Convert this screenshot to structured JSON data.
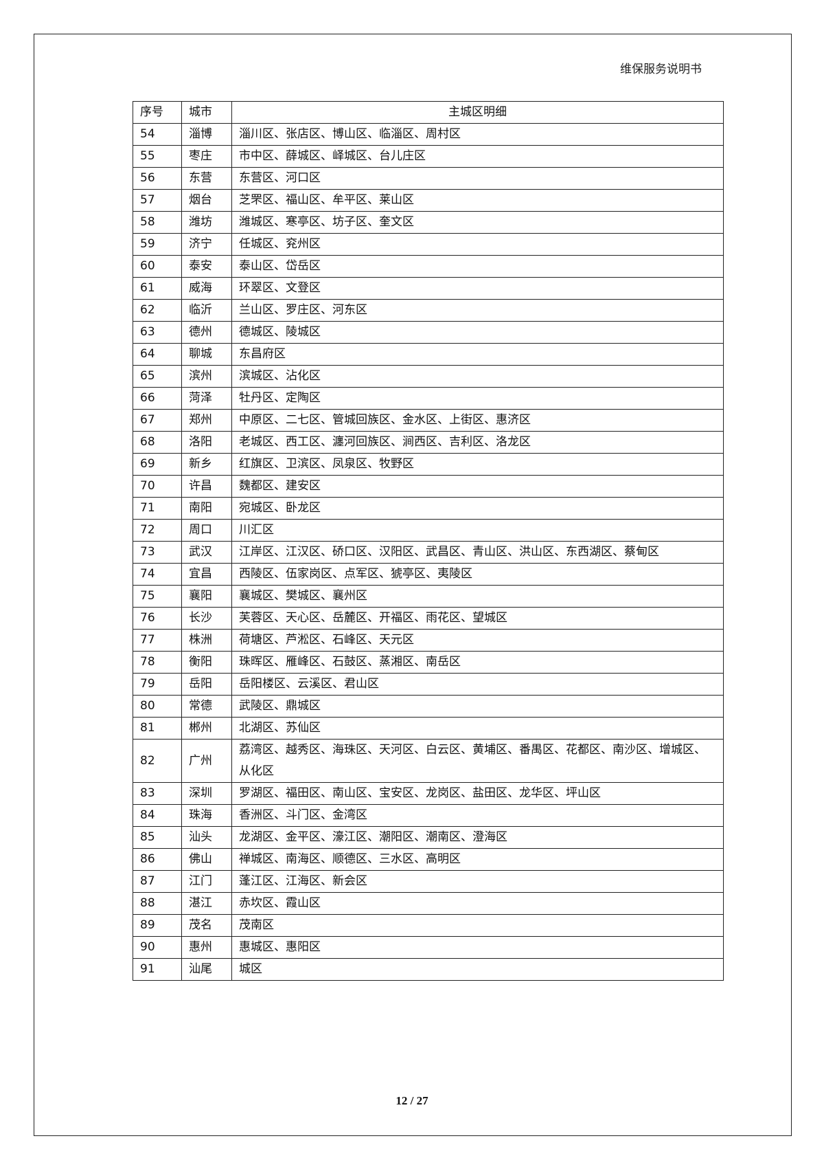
{
  "header": {
    "title": "维保服务说明书"
  },
  "table": {
    "columns": [
      "序号",
      "城市",
      "主城区明细"
    ],
    "rows": [
      [
        "54",
        "淄博",
        "淄川区、张店区、博山区、临淄区、周村区"
      ],
      [
        "55",
        "枣庄",
        "市中区、薛城区、峄城区、台儿庄区"
      ],
      [
        "56",
        "东营",
        "东营区、河口区"
      ],
      [
        "57",
        "烟台",
        "芝罘区、福山区、牟平区、莱山区"
      ],
      [
        "58",
        "潍坊",
        "潍城区、寒亭区、坊子区、奎文区"
      ],
      [
        "59",
        "济宁",
        "任城区、兖州区"
      ],
      [
        "60",
        "泰安",
        "泰山区、岱岳区"
      ],
      [
        "61",
        "威海",
        "环翠区、文登区"
      ],
      [
        "62",
        "临沂",
        "兰山区、罗庄区、河东区"
      ],
      [
        "63",
        "德州",
        "德城区、陵城区"
      ],
      [
        "64",
        "聊城",
        "东昌府区"
      ],
      [
        "65",
        "滨州",
        "滨城区、沾化区"
      ],
      [
        "66",
        "菏泽",
        "牡丹区、定陶区"
      ],
      [
        "67",
        "郑州",
        "中原区、二七区、管城回族区、金水区、上街区、惠济区"
      ],
      [
        "68",
        "洛阳",
        "老城区、西工区、瀍河回族区、涧西区、吉利区、洛龙区"
      ],
      [
        "69",
        "新乡",
        "红旗区、卫滨区、凤泉区、牧野区"
      ],
      [
        "70",
        "许昌",
        "魏都区、建安区"
      ],
      [
        "71",
        "南阳",
        "宛城区、卧龙区"
      ],
      [
        "72",
        "周口",
        "川汇区"
      ],
      [
        "73",
        "武汉",
        "江岸区、江汉区、硚口区、汉阳区、武昌区、青山区、洪山区、东西湖区、蔡甸区"
      ],
      [
        "74",
        "宜昌",
        "西陵区、伍家岗区、点军区、猇亭区、夷陵区"
      ],
      [
        "75",
        "襄阳",
        "襄城区、樊城区、襄州区"
      ],
      [
        "76",
        "长沙",
        "芙蓉区、天心区、岳麓区、开福区、雨花区、望城区"
      ],
      [
        "77",
        "株洲",
        "荷塘区、芦淞区、石峰区、天元区"
      ],
      [
        "78",
        "衡阳",
        "珠晖区、雁峰区、石鼓区、蒸湘区、南岳区"
      ],
      [
        "79",
        "岳阳",
        "岳阳楼区、云溪区、君山区"
      ],
      [
        "80",
        "常德",
        "武陵区、鼎城区"
      ],
      [
        "81",
        "郴州",
        "北湖区、苏仙区"
      ],
      [
        "82",
        "广州",
        "荔湾区、越秀区、海珠区、天河区、白云区、黄埔区、番禺区、花都区、南沙区、增城区、从化区"
      ],
      [
        "83",
        "深圳",
        "罗湖区、福田区、南山区、宝安区、龙岗区、盐田区、龙华区、坪山区"
      ],
      [
        "84",
        "珠海",
        "香洲区、斗门区、金湾区"
      ],
      [
        "85",
        "汕头",
        "龙湖区、金平区、濠江区、潮阳区、潮南区、澄海区"
      ],
      [
        "86",
        "佛山",
        "禅城区、南海区、顺德区、三水区、高明区"
      ],
      [
        "87",
        "江门",
        "蓬江区、江海区、新会区"
      ],
      [
        "88",
        "湛江",
        "赤坎区、霞山区"
      ],
      [
        "89",
        "茂名",
        "茂南区"
      ],
      [
        "90",
        "惠州",
        "惠城区、惠阳区"
      ],
      [
        "91",
        "汕尾",
        "城区"
      ]
    ]
  },
  "footer": {
    "page": "12 / 27"
  }
}
